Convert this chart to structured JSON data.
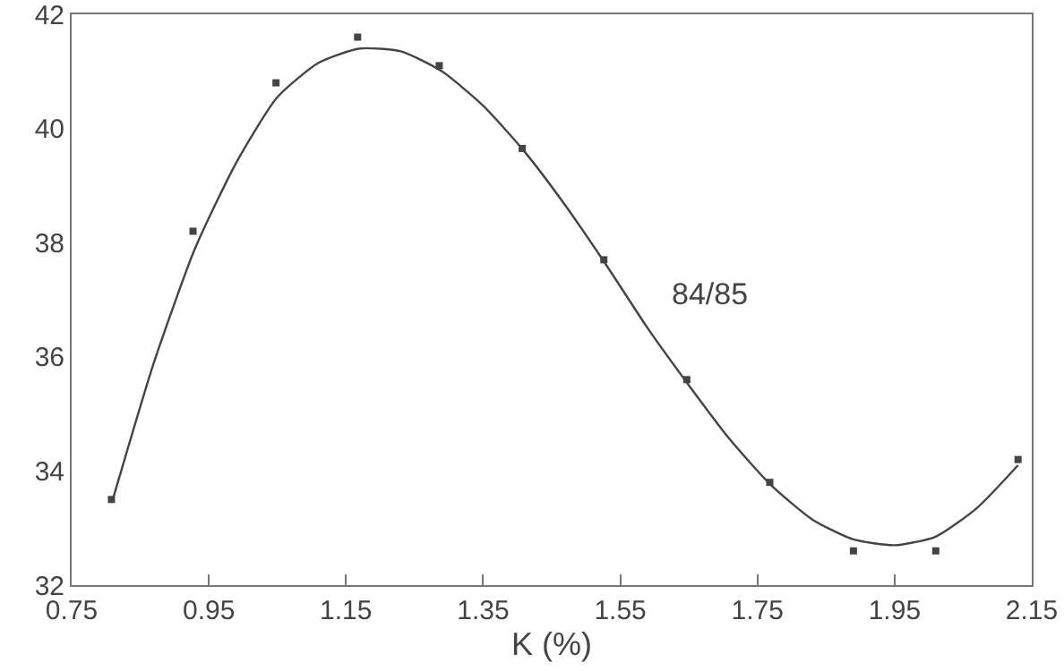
{
  "chart_data": {
    "type": "scatter",
    "xlabel": "K (%)",
    "xlim": [
      0.75,
      2.15
    ],
    "xticks": [
      0.75,
      0.95,
      1.15,
      1.35,
      1.55,
      1.75,
      1.95,
      2.15
    ],
    "ylim": [
      32,
      42
    ],
    "yticks": [
      32,
      34,
      36,
      38,
      40,
      42
    ],
    "grid": false,
    "marker": "square",
    "series": [
      {
        "color": "#444444",
        "x": [
          0.808,
          0.927,
          1.048,
          1.167,
          1.286,
          1.407,
          1.526,
          1.647,
          1.768,
          1.89,
          2.01,
          2.13
        ],
        "values": [
          33.5,
          38.2,
          40.8,
          41.6,
          41.1,
          39.65,
          37.7,
          35.6,
          33.8,
          32.6,
          32.6,
          34.2
        ]
      },
      {
        "type": "line",
        "color": "#444444",
        "line_style": "solid",
        "marker": "none",
        "x": [
          0.81,
          0.87,
          0.93,
          0.99,
          1.05,
          1.11,
          1.17,
          1.23,
          1.29,
          1.35,
          1.41,
          1.47,
          1.53,
          1.59,
          1.65,
          1.71,
          1.77,
          1.83,
          1.89,
          1.95,
          2.01,
          2.07,
          2.13
        ],
        "values": [
          33.5,
          35.9,
          37.9,
          39.4,
          40.55,
          41.15,
          41.4,
          41.35,
          41.0,
          40.4,
          39.6,
          38.65,
          37.6,
          36.5,
          35.5,
          34.55,
          33.75,
          33.15,
          32.8,
          32.7,
          32.85,
          33.35,
          34.1
        ]
      }
    ],
    "annotations": [
      "84/85"
    ]
  }
}
